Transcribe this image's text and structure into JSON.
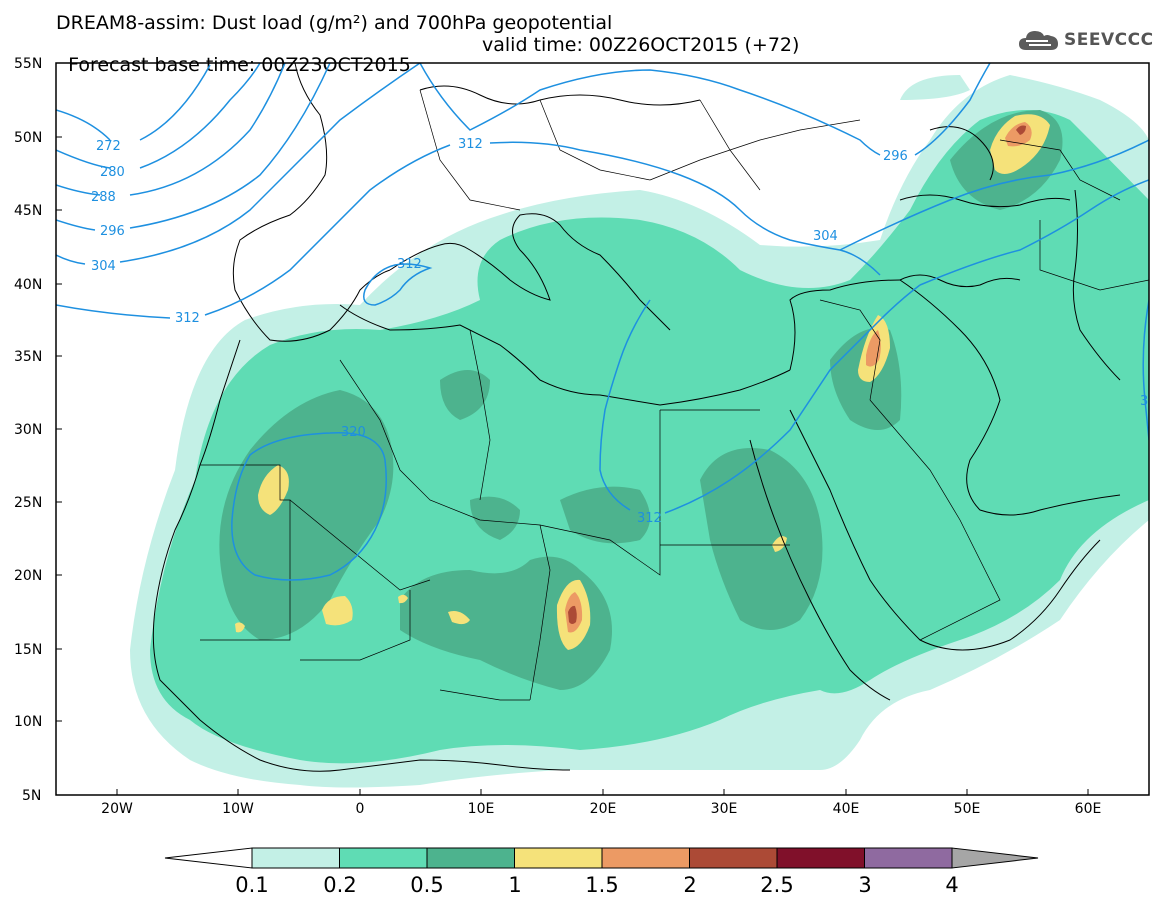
{
  "header": {
    "title_line1": "DREAM8-assim: Dust load (g/m²) and 700hPa geopotential",
    "base_time": "Forecast base time: 00Z23OCT2015",
    "valid_time": "valid time: 00Z26OCT2015 (+72)",
    "logo_text": "SEEVCCC",
    "logo_icon": "cloud-icon"
  },
  "map": {
    "lat_labels": [
      "55N",
      "50N",
      "45N",
      "40N",
      "35N",
      "30N",
      "25N",
      "20N",
      "15N",
      "10N",
      "5N"
    ],
    "lon_labels": [
      "20W",
      "10W",
      "0",
      "10E",
      "20E",
      "30E",
      "40E",
      "50E",
      "60E"
    ],
    "contour_labels": [
      "272",
      "280",
      "288",
      "296",
      "304",
      "312",
      "312",
      "320",
      "312",
      "296",
      "304",
      "312",
      "3"
    ],
    "colors": {
      "c01": "#c3f0e6",
      "c02": "#5fdcb4",
      "c05": "#4db38e",
      "c1": "#f5e27a",
      "c15": "#ec9a64",
      "c2": "#ac4a36",
      "c25": "#80102a",
      "c3": "#8f6aa0",
      "c4": "#a6a6a6",
      "contour": "#1e90e0"
    }
  },
  "colorbar": {
    "labels": [
      "0.1",
      "0.2",
      "0.5",
      "1",
      "1.5",
      "2",
      "2.5",
      "3",
      "4"
    ],
    "colors": [
      "#c3f0e6",
      "#5fdcb4",
      "#4db38e",
      "#f5e27a",
      "#ec9a64",
      "#ac4a36",
      "#80102a",
      "#8f6aa0"
    ]
  }
}
